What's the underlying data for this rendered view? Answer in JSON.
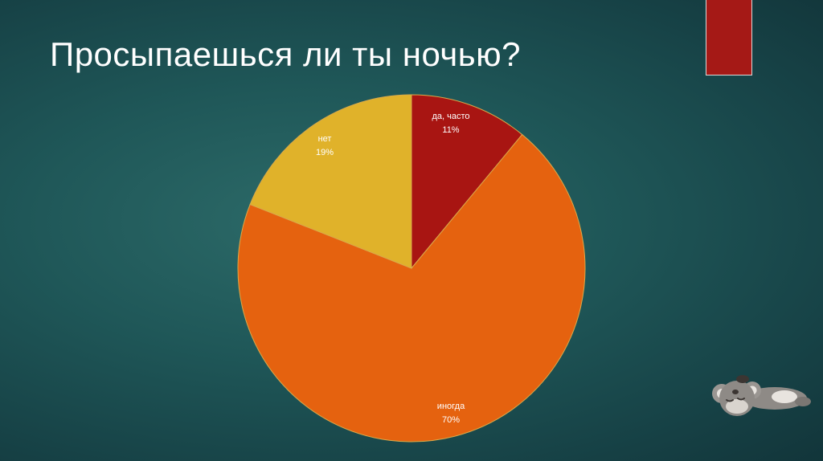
{
  "slide": {
    "title": "Просыпаешься ли ты ночью?",
    "accent_color": "#a51916"
  },
  "chart_data": {
    "type": "pie",
    "title": "",
    "slices": [
      {
        "label": "да, часто",
        "value": 11,
        "value_text": "11%",
        "color": "#a81512"
      },
      {
        "label": "иногда",
        "value": 70,
        "value_text": "70%",
        "color": "#e5620f"
      },
      {
        "label": "нет",
        "value": 19,
        "value_text": "19%",
        "color": "#e0b22a"
      }
    ],
    "start_angle_deg": 0,
    "direction": "clockwise",
    "legend": "none",
    "data_labels": "inside"
  },
  "decoration": {
    "mascot_icon": "sleeping-koala-icon"
  }
}
